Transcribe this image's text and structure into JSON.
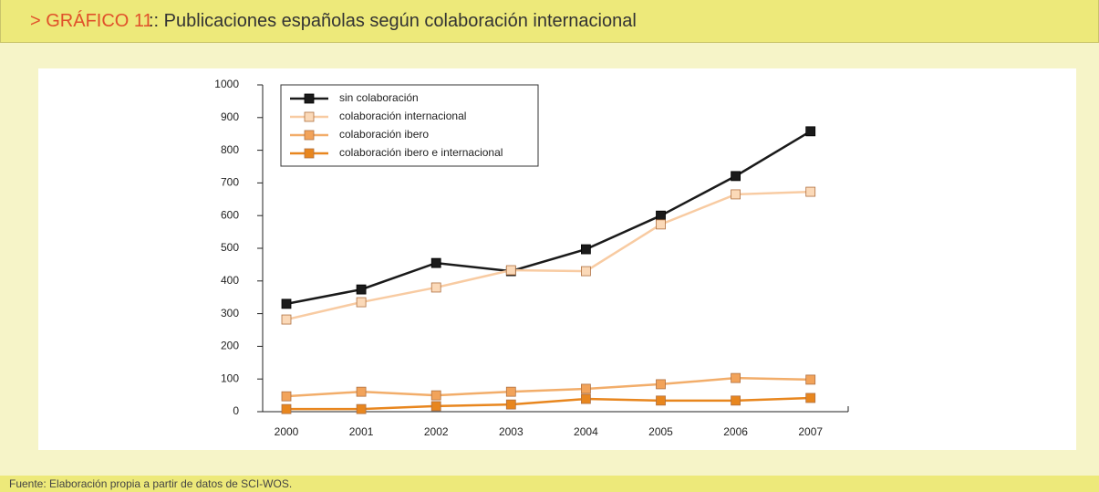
{
  "header": {
    "label": "> GRÁFICO 11",
    "title": ":: Publicaciones españolas según colaboración internacional"
  },
  "footer": "Fuente: Elaboración propia a partir de datos de SCI-WOS.",
  "chart_data": {
    "type": "line",
    "categories": [
      "2000",
      "2001",
      "2002",
      "2003",
      "2004",
      "2005",
      "2006",
      "2007"
    ],
    "series": [
      {
        "name": "sin colaboración",
        "color": "#1a1a1a",
        "marker": "#1a1a1a",
        "values": [
          330,
          374,
          455,
          430,
          497,
          600,
          721,
          858
        ]
      },
      {
        "name": "colaboración internacional",
        "color": "#f8cba2",
        "marker": "#fbd9b8",
        "values": [
          282,
          335,
          380,
          433,
          430,
          573,
          665,
          673
        ]
      },
      {
        "name": "colaboración ibero",
        "color": "#f2ad6a",
        "marker": "#f2a35a",
        "values": [
          47,
          61,
          50,
          61,
          70,
          84,
          103,
          98
        ]
      },
      {
        "name": "colaboración ibero e internacional",
        "color": "#e8861e",
        "marker": "#e8861e",
        "values": [
          8,
          8,
          17,
          22,
          39,
          34,
          34,
          42
        ]
      }
    ],
    "ylim": [
      0,
      1000
    ],
    "yticks": [
      0,
      100,
      200,
      300,
      400,
      500,
      600,
      700,
      800,
      900,
      1000
    ]
  }
}
